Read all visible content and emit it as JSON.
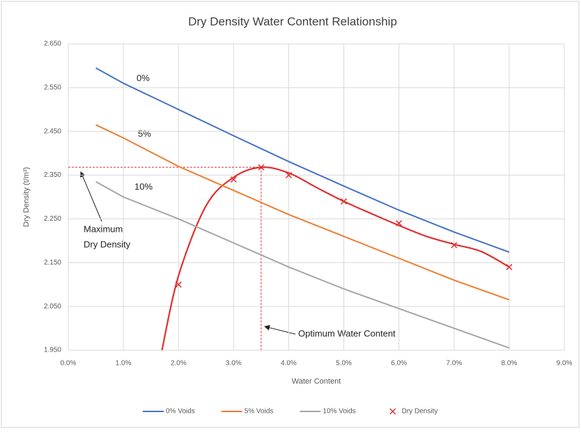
{
  "chart_data": {
    "type": "line",
    "title": "Dry Density Water Content Relationship",
    "x_label": "Water Content",
    "y_label": "Dry Density (t/m³)",
    "xlim": [
      0,
      9
    ],
    "xticks": [
      {
        "value": 0,
        "label": "0.0%"
      },
      {
        "value": 1,
        "label": "1.0%"
      },
      {
        "value": 2,
        "label": "2.0%"
      },
      {
        "value": 3,
        "label": "3.0%"
      },
      {
        "value": 4,
        "label": "4.0%"
      },
      {
        "value": 5,
        "label": "5.0%"
      },
      {
        "value": 6,
        "label": "6.0%"
      },
      {
        "value": 7,
        "label": "7.0%"
      },
      {
        "value": 8,
        "label": "8.0%"
      },
      {
        "value": 9,
        "label": "9.0%"
      }
    ],
    "ylim": [
      1.95,
      2.65
    ],
    "yticks": [
      {
        "value": 1.95,
        "label": "1.950"
      },
      {
        "value": 2.05,
        "label": "2.050"
      },
      {
        "value": 2.15,
        "label": "2.150"
      },
      {
        "value": 2.25,
        "label": "2.250"
      },
      {
        "value": 2.35,
        "label": "2.350"
      },
      {
        "value": 2.45,
        "label": "2.450"
      },
      {
        "value": 2.55,
        "label": "2.550"
      },
      {
        "value": 2.65,
        "label": "2.650"
      }
    ],
    "grid": true,
    "legend": "bottom",
    "series": [
      {
        "name": "0% Voids",
        "color": "#4472c4",
        "x": [
          0.5,
          1,
          2,
          3,
          4,
          5,
          6,
          7,
          8
        ],
        "values": [
          2.595,
          2.56,
          2.5,
          2.44,
          2.381,
          2.325,
          2.27,
          2.22,
          2.174
        ]
      },
      {
        "name": "5% Voids",
        "color": "#ed7d31",
        "x": [
          0.5,
          1,
          2,
          3,
          4,
          5,
          6,
          7,
          8
        ],
        "values": [
          2.465,
          2.435,
          2.37,
          2.315,
          2.26,
          2.21,
          2.16,
          2.11,
          2.065
        ]
      },
      {
        "name": "10% Voids",
        "color": "#a5a5a5",
        "x": [
          0.5,
          1,
          2,
          3,
          4,
          5,
          6,
          7,
          8
        ],
        "values": [
          2.335,
          2.3,
          2.25,
          2.195,
          2.14,
          2.09,
          2.045,
          2.0,
          1.955
        ]
      },
      {
        "name": "Dry Density",
        "color": "#e03030",
        "marker": "x",
        "x": [
          2,
          3,
          3.5,
          4,
          5,
          6,
          7,
          8
        ],
        "values": [
          2.1,
          2.34,
          2.368,
          2.35,
          2.29,
          2.24,
          2.19,
          2.14
        ]
      }
    ],
    "fit_curve": {
      "color": "#e03030",
      "x": [
        1.7,
        2,
        2.5,
        3,
        3.5,
        4,
        4.5,
        5,
        5.5,
        6,
        6.5,
        7,
        7.5,
        8
      ],
      "values": [
        1.95,
        2.12,
        2.28,
        2.345,
        2.368,
        2.355,
        2.322,
        2.29,
        2.262,
        2.235,
        2.21,
        2.192,
        2.175,
        2.14
      ]
    },
    "annotations": {
      "curve_labels": [
        "0%",
        "5%",
        "10%"
      ],
      "maximum": [
        "Maximum",
        "Dry Density"
      ],
      "optimum": "Optimum Water Content"
    }
  }
}
